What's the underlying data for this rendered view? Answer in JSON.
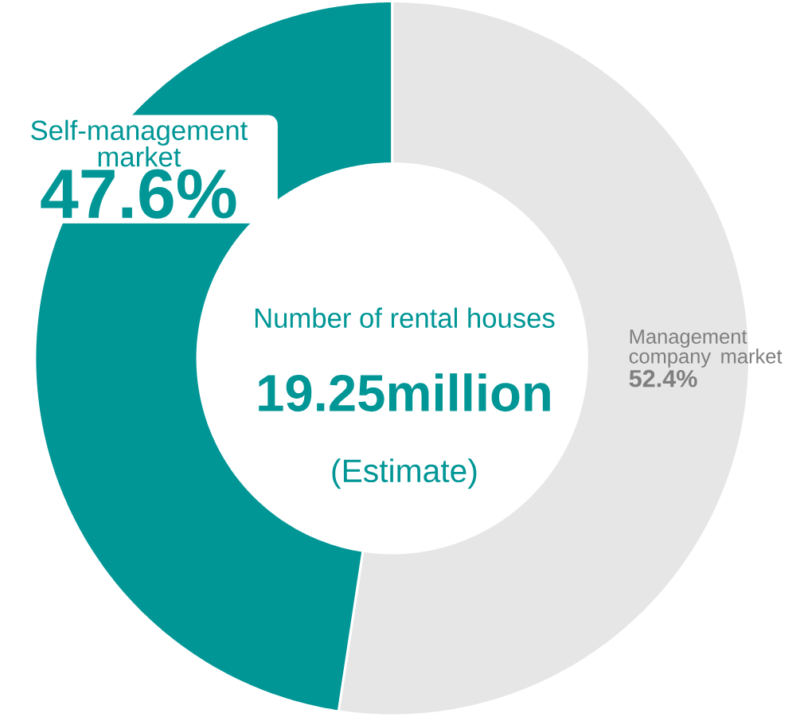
{
  "chart_data": {
    "type": "donut",
    "categories": [
      "Management company market",
      "Self-management market"
    ],
    "values": [
      52.4,
      47.6
    ],
    "value_labels": [
      "52.4%",
      "47.6%"
    ],
    "colors": [
      "#e6e6e6",
      "#009696"
    ],
    "annotations": [
      "Number of rental houses",
      "19.25million",
      "(Estimate)"
    ]
  }
}
